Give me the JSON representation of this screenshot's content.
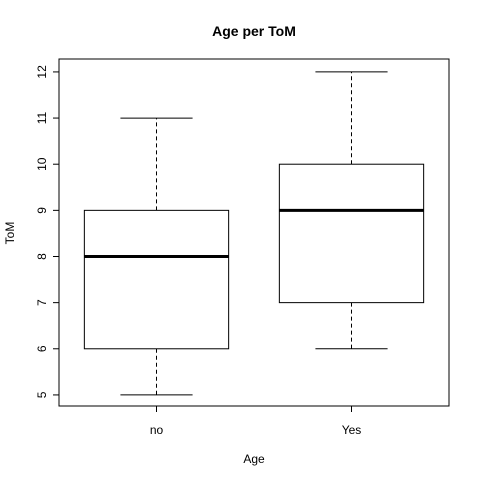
{
  "chart_data": {
    "type": "boxplot",
    "title": "Age per ToM",
    "xlabel": "Age",
    "ylabel": "ToM",
    "categories": [
      "no",
      "Yes"
    ],
    "boxes": [
      {
        "category": "no",
        "min": 5,
        "q1": 6,
        "median": 8,
        "q3": 9,
        "max": 11
      },
      {
        "category": "Yes",
        "min": 6,
        "q1": 7,
        "median": 9,
        "q3": 10,
        "max": 12
      }
    ],
    "yticks": [
      5,
      6,
      7,
      8,
      9,
      10,
      11,
      12
    ],
    "ylim": [
      4.76,
      12.28
    ],
    "grid": false
  }
}
